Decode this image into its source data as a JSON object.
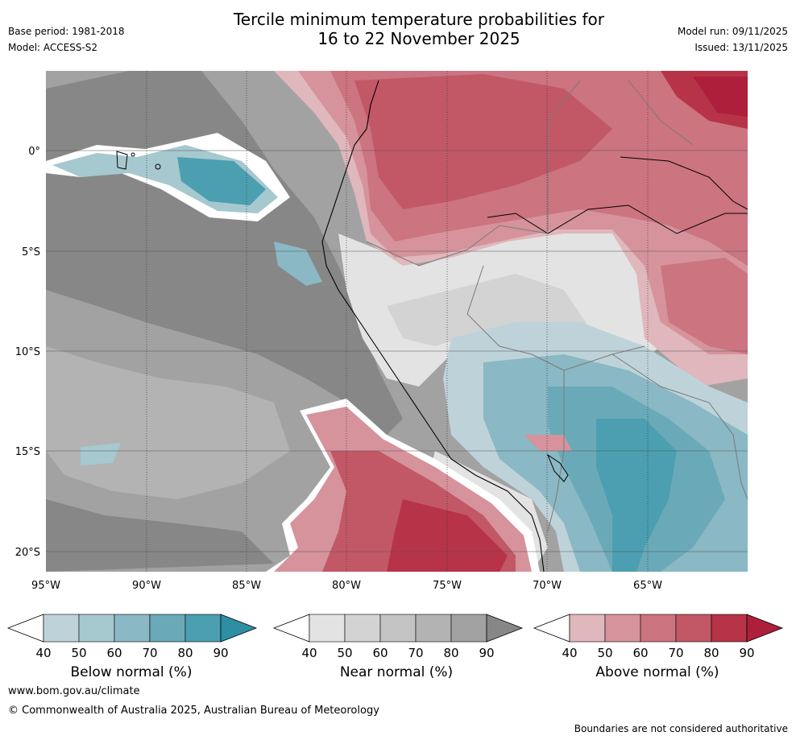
{
  "header": {
    "title_line1": "Tercile minimum temperature probabilities for",
    "title_line2": "16 to 22 November 2025",
    "base_period": "Base period: 1981-2018",
    "model": "Model: ACCESS-S2",
    "model_run": "Model run: 09/11/2025",
    "issued": "Issued: 13/11/2025"
  },
  "map": {
    "lat_labels": [
      "0°",
      "5°S",
      "10°S",
      "15°S",
      "20°S"
    ],
    "lon_labels": [
      "95°W",
      "90°W",
      "85°W",
      "80°W",
      "75°W",
      "70°W",
      "65°W"
    ]
  },
  "colorbars": [
    {
      "title": "Below normal (%)",
      "ticks": [
        "40",
        "50",
        "60",
        "70",
        "80",
        "90"
      ],
      "colors": [
        "#ffffff",
        "#bed3d9",
        "#a6c8cf",
        "#8ab8c4",
        "#6aaab8",
        "#4b9fb0",
        "#2e8fa4"
      ]
    },
    {
      "title": "Near normal (%)",
      "ticks": [
        "40",
        "50",
        "60",
        "70",
        "80",
        "90"
      ],
      "colors": [
        "#ffffff",
        "#e3e3e3",
        "#d3d3d3",
        "#c3c3c3",
        "#b3b3b3",
        "#a2a2a2",
        "#878787"
      ]
    },
    {
      "title": "Above normal (%)",
      "ticks": [
        "40",
        "50",
        "60",
        "70",
        "80",
        "90"
      ],
      "colors": [
        "#ffffff",
        "#dfb7bd",
        "#d6939c",
        "#cc7480",
        "#c25866",
        "#b73348",
        "#ad1f3a"
      ]
    }
  ],
  "footer": {
    "website": "www.bom.gov.au/climate",
    "copyright": "© Commonwealth of Australia 2025, Australian Bureau of Meteorology",
    "disclaimer": "Boundaries are not considered authoritative"
  }
}
